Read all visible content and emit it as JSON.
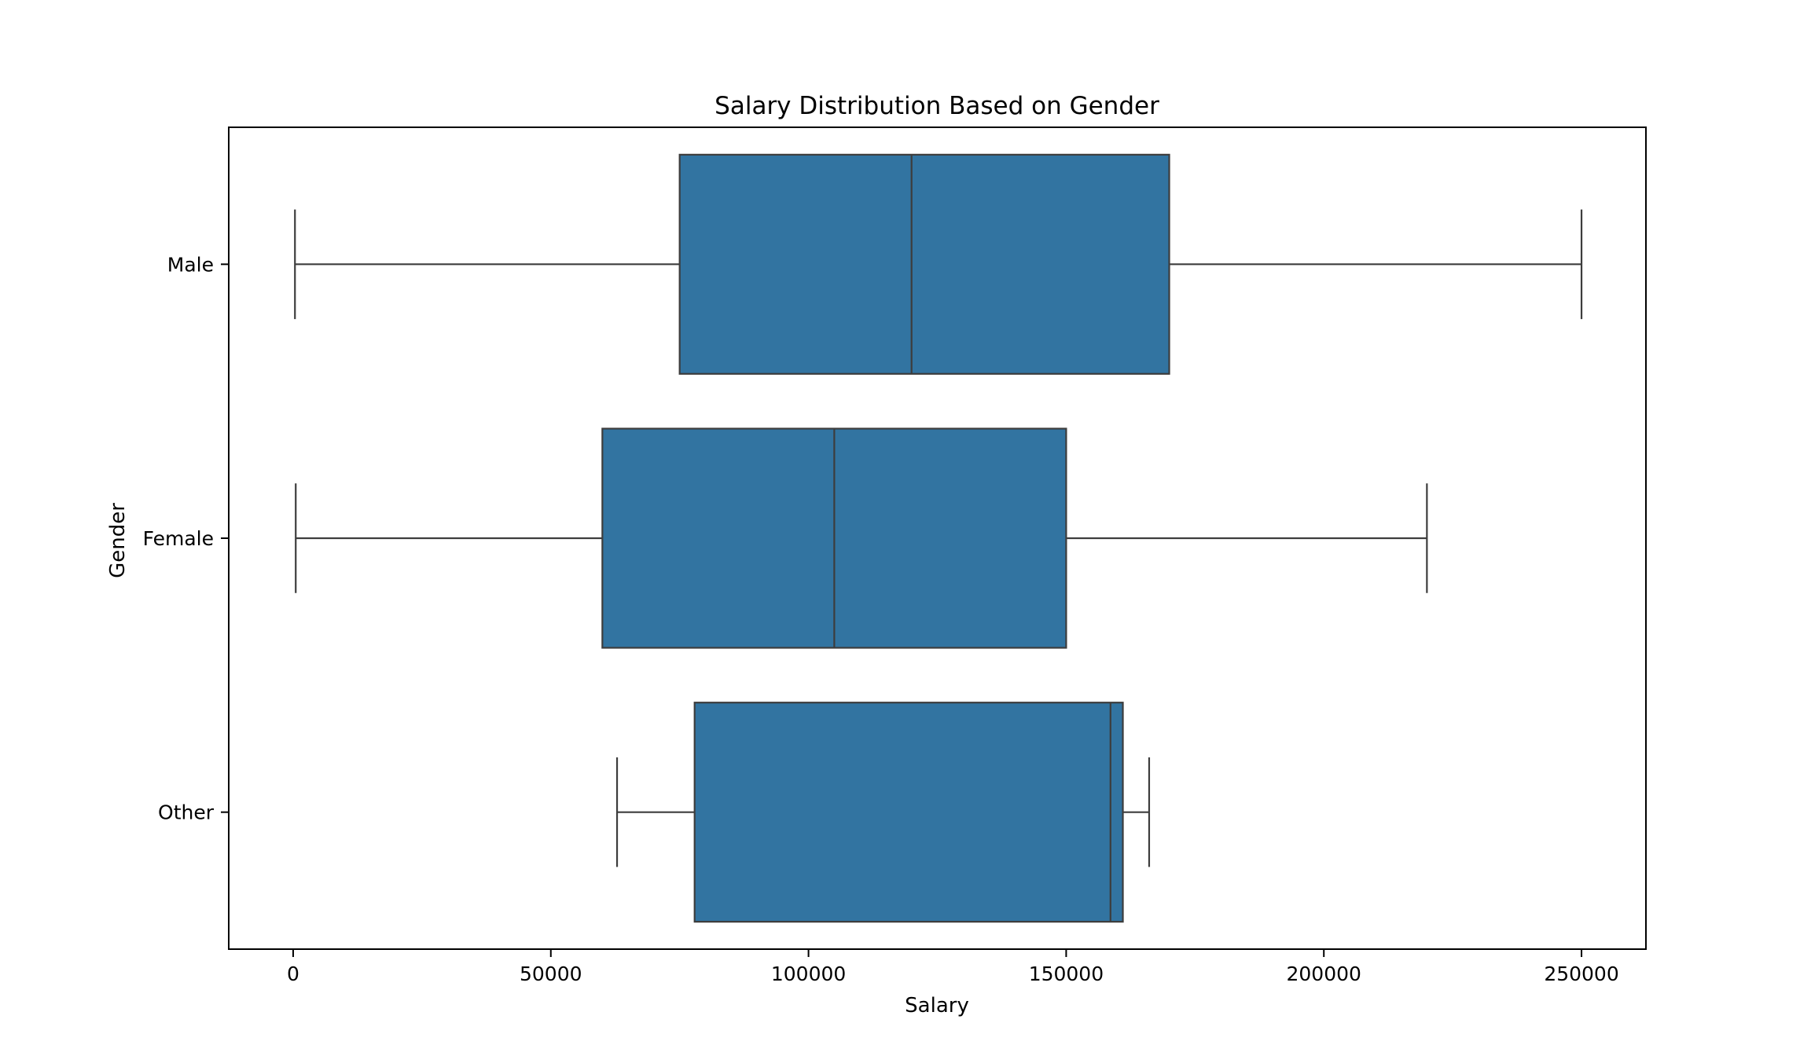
{
  "chart_data": {
    "type": "boxplot",
    "orientation": "horizontal",
    "title": "Salary Distribution Based on Gender",
    "xlabel": "Salary",
    "ylabel": "Gender",
    "xlim": [
      -12500,
      262500
    ],
    "xticks": [
      0,
      50000,
      100000,
      150000,
      200000,
      250000
    ],
    "xtick_labels": [
      "0",
      "50000",
      "100000",
      "150000",
      "200000",
      "250000"
    ],
    "grid": false,
    "box_color": "#3274a1",
    "line_color": "#3d3d3d",
    "categories": [
      "Male",
      "Female",
      "Other"
    ],
    "boxes": [
      {
        "category": "Male",
        "whisker_low": 350,
        "q1": 75000,
        "median": 120000,
        "q3": 170000,
        "whisker_high": 250000
      },
      {
        "category": "Female",
        "whisker_low": 500,
        "q1": 60000,
        "median": 105000,
        "q3": 150000,
        "whisker_high": 220000
      },
      {
        "category": "Other",
        "whisker_low": 62852,
        "q1": 77900,
        "median": 158600,
        "q3": 161000,
        "whisker_high": 166100
      }
    ]
  }
}
